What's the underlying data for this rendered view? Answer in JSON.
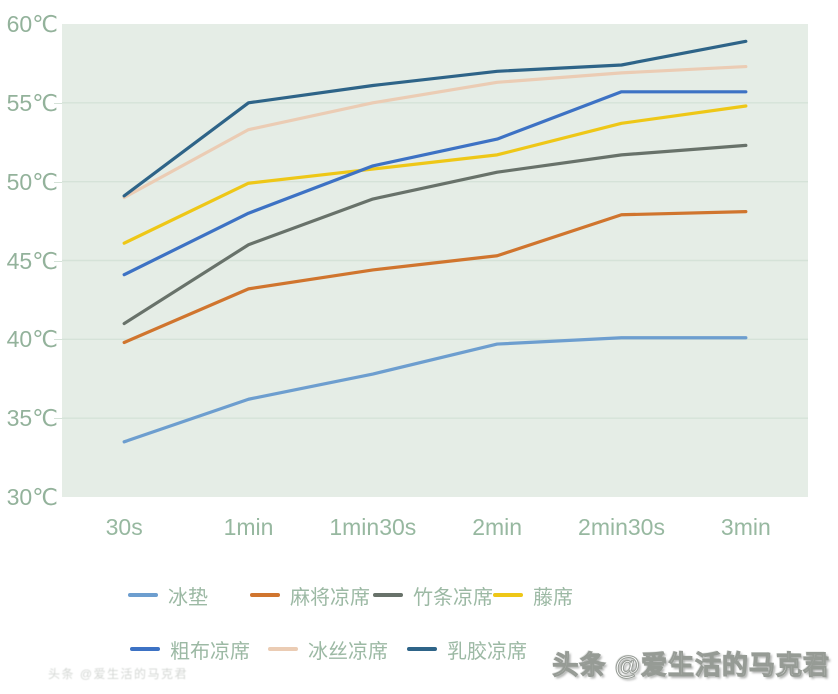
{
  "chart_data": {
    "type": "line",
    "title": "",
    "xlabel": "",
    "ylabel": "",
    "categories": [
      "30s",
      "1min",
      "1min30s",
      "2min",
      "2min30s",
      "3min"
    ],
    "series": [
      {
        "name": "冰垫",
        "color": "#6d9ecf",
        "values": [
          33.5,
          36.2,
          37.8,
          39.7,
          40.1,
          40.1
        ]
      },
      {
        "name": "麻将凉席",
        "color": "#d0752e",
        "values": [
          39.8,
          43.2,
          44.4,
          45.3,
          47.9,
          48.1
        ]
      },
      {
        "name": "竹条凉席",
        "color": "#68726a",
        "values": [
          41.0,
          46.0,
          48.9,
          50.6,
          51.7,
          52.3
        ]
      },
      {
        "name": "藤席",
        "color": "#eec717",
        "values": [
          46.1,
          49.9,
          50.8,
          51.7,
          53.7,
          54.8
        ]
      },
      {
        "name": "粗布凉席",
        "color": "#3d72c4",
        "values": [
          44.1,
          48.0,
          51.0,
          52.7,
          55.7,
          55.7
        ]
      },
      {
        "name": "冰丝凉席",
        "color": "#ebccb4",
        "values": [
          49.0,
          53.3,
          55.0,
          56.3,
          56.9,
          57.3
        ]
      },
      {
        "name": "乳胶凉席",
        "color": "#2e6488",
        "values": [
          49.1,
          55.0,
          56.1,
          57.0,
          57.4,
          58.9
        ]
      }
    ],
    "ylim": [
      30,
      60
    ],
    "y_tick_labels": [
      "60℃",
      "55℃",
      "50℃",
      "45℃",
      "40℃",
      "35℃",
      "30℃"
    ],
    "y_tick_values": [
      60,
      55,
      50,
      45,
      40,
      35,
      30
    ],
    "y_gridline_values": [
      55,
      50,
      45,
      40,
      35
    ],
    "grid": "horizontal",
    "legend_position": "bottom",
    "legend_rows": [
      [
        "冰垫",
        "麻将凉席",
        "竹条凉席",
        "藤席"
      ],
      [
        "粗布凉席",
        "冰丝凉席",
        "乳胶凉席"
      ]
    ]
  },
  "watermarks": {
    "bottom_right": "头条 @爱生活的马克君",
    "faint_bottom_left": "头条 @爱生活的马克君"
  },
  "colors": {
    "plot_background": "#e5ede6",
    "gridline": "#d5e2d8",
    "axis_label": "#93b29b",
    "legend_label": "#9cb9a4"
  }
}
